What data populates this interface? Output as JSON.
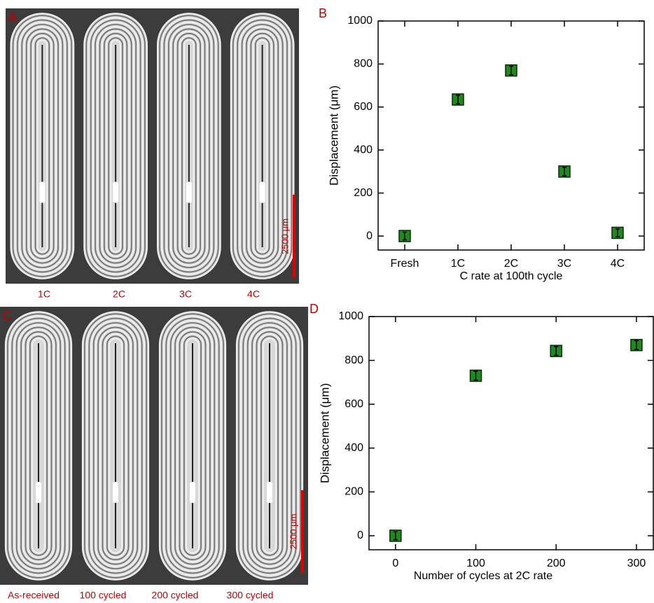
{
  "images": [
    {
      "panel": "A",
      "captions": [
        "1C",
        "2C",
        "3C",
        "4C"
      ],
      "scale_bar": "2500 μm"
    },
    {
      "panel": "C",
      "captions": [
        "As-received",
        "100 cycled",
        "200 cycled",
        "300 cycled"
      ],
      "scale_bar": "2500 μm"
    }
  ],
  "chart_data": [
    {
      "type": "scatter",
      "panel": "B",
      "categories": [
        "Fresh",
        "1C",
        "2C",
        "3C",
        "4C"
      ],
      "xlabel": "C rate at 100th cycle",
      "ylabel": "Displacement (μm)",
      "series": [
        {
          "color": "#1e8a1e",
          "values": [
            0,
            635,
            770,
            300,
            15
          ],
          "errors": [
            18,
            20,
            20,
            20,
            18
          ]
        }
      ],
      "ylim": [
        -65,
        1000
      ],
      "yticks": [
        0,
        200,
        400,
        600,
        800,
        1000
      ]
    },
    {
      "type": "scatter",
      "panel": "D",
      "x": [
        0,
        100,
        200,
        300
      ],
      "xlabel": "Number of cycles at 2C rate",
      "ylabel": "Displacement (μm)",
      "series": [
        {
          "color": "#1e8a1e",
          "values": [
            0,
            730,
            843,
            870
          ],
          "errors": [
            18,
            20,
            20,
            20
          ]
        }
      ],
      "xlim": [
        -33,
        321
      ],
      "xticks": [
        0,
        100,
        200,
        300
      ],
      "ylim": [
        -64,
        1000
      ],
      "yticks": [
        0,
        200,
        400,
        600,
        800,
        1000
      ]
    }
  ]
}
